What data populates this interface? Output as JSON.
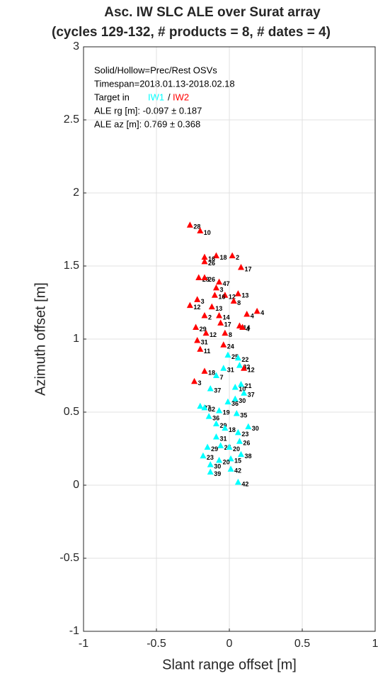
{
  "chart_data": {
    "type": "scatter",
    "title": "Asc. IW SLC ALE over Surat array",
    "subtitle": "(cycles 129-132, # products = 8, # dates = 4)",
    "xlabel": "Slant range offset [m]",
    "ylabel": "Azimuth offset [m]",
    "annotations": [
      "Solid/Hollow=Prec/Rest OSVs",
      "Timespan=2018.01.13-2018.02.18",
      "Target in",
      "/",
      "ALE rg [m]: -0.097 ± 0.187",
      "ALE az [m]: 0.769 ± 0.368"
    ],
    "xlim": [
      -1,
      1
    ],
    "xticks": [
      -1,
      -0.5,
      0,
      0.5,
      1
    ],
    "ylim": [
      -1,
      3
    ],
    "yticks": [
      -1,
      -0.5,
      0,
      0.5,
      1,
      1.5,
      2,
      2.5,
      3
    ],
    "grid": true,
    "series": [
      {
        "name": "IW1",
        "color": "#00ffff",
        "x": [
          -0.01,
          0.06,
          0.07,
          -0.04,
          -0.09,
          0.04,
          0.08,
          -0.13,
          0.1,
          0.04,
          -0.01,
          -0.2,
          -0.17,
          -0.07,
          -0.14,
          0.05,
          -0.09,
          0.13,
          -0.03,
          0.06,
          -0.09,
          0.07,
          -0.06,
          -0.15,
          0.0,
          0.08,
          -0.18,
          0.01,
          -0.07,
          -0.13,
          0.01,
          -0.13,
          0.06
        ],
        "y": [
          0.89,
          0.87,
          0.82,
          0.8,
          0.75,
          0.67,
          0.69,
          0.66,
          0.63,
          0.59,
          0.57,
          0.54,
          0.53,
          0.51,
          0.47,
          0.49,
          0.42,
          0.4,
          0.39,
          0.36,
          0.33,
          0.3,
          0.27,
          0.26,
          0.26,
          0.21,
          0.2,
          0.18,
          0.17,
          0.14,
          0.11,
          0.09,
          0.02
        ],
        "labels": [
          "25",
          "22",
          "32",
          "31",
          "7",
          "10",
          "21",
          "37",
          "37",
          "30",
          "36",
          "27",
          "32",
          "19",
          "36",
          "35",
          "29",
          "30",
          "18",
          "23",
          "31",
          "26",
          "25",
          "29",
          "20",
          "38",
          "23",
          "15",
          "20",
          "30",
          "42",
          "39",
          "42"
        ]
      },
      {
        "name": "IW2",
        "color": "#ff0000",
        "x": [
          -0.27,
          -0.2,
          -0.09,
          0.02,
          -0.17,
          -0.17,
          0.08,
          -0.21,
          -0.17,
          -0.07,
          -0.09,
          0.06,
          -0.03,
          -0.1,
          0.03,
          -0.22,
          -0.27,
          -0.12,
          0.19,
          0.12,
          -0.17,
          -0.07,
          -0.06,
          0.07,
          0.09,
          -0.23,
          -0.16,
          -0.03,
          -0.22,
          -0.04,
          -0.2,
          -0.17,
          -0.24,
          0.1
        ],
        "y": [
          1.78,
          1.74,
          1.57,
          1.57,
          1.56,
          1.53,
          1.49,
          1.42,
          1.42,
          1.39,
          1.35,
          1.31,
          1.3,
          1.3,
          1.26,
          1.27,
          1.23,
          1.22,
          1.19,
          1.17,
          1.16,
          1.16,
          1.11,
          1.09,
          1.08,
          1.08,
          1.04,
          1.04,
          0.99,
          0.96,
          0.93,
          0.78,
          0.71,
          0.8
        ],
        "labels": [
          "28",
          "10",
          "18",
          "2",
          "16",
          "26",
          "17",
          "28",
          "26",
          "47",
          "3",
          "13",
          "12",
          "16",
          "8",
          "3",
          "12",
          "13",
          "4",
          "4",
          "2",
          "14",
          "17",
          "14",
          "4",
          "29",
          "12",
          "8",
          "31",
          "24",
          "11",
          "18",
          "3",
          "12"
        ]
      }
    ]
  }
}
